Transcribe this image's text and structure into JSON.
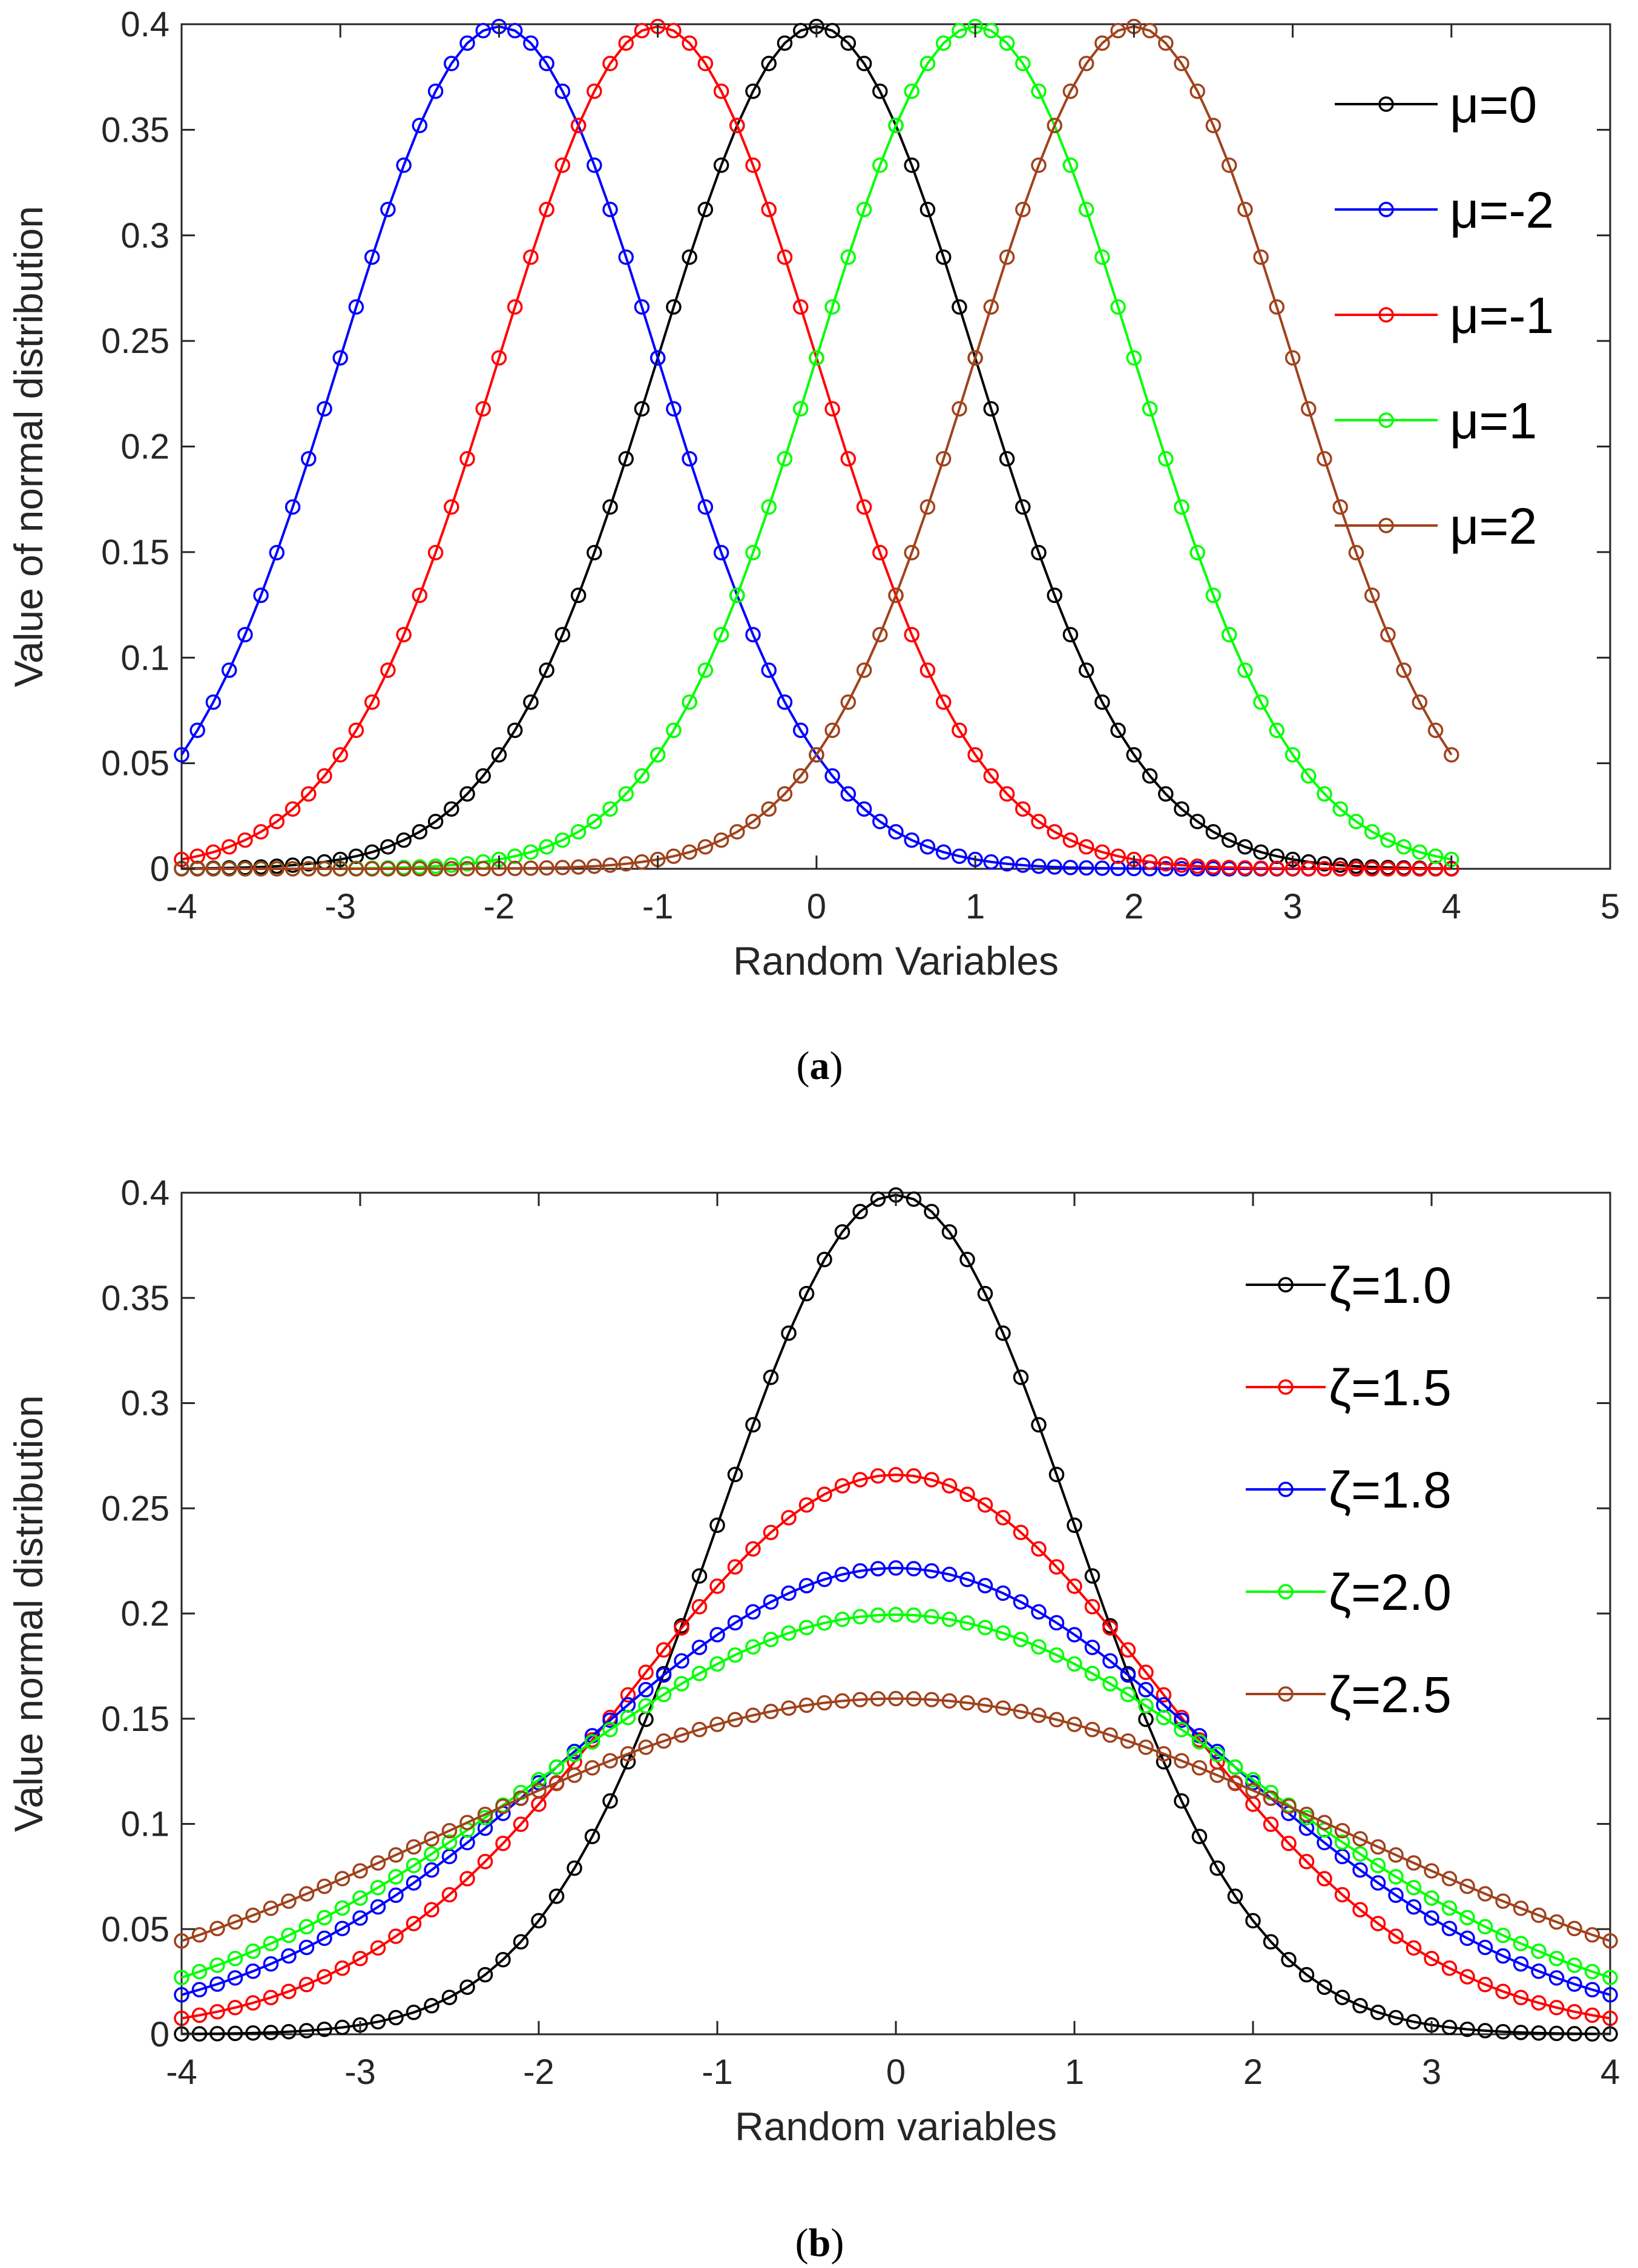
{
  "chart_data": [
    {
      "type": "line",
      "panel_label": "a",
      "xlabel": "Random Variables",
      "ylabel": "Value of normal distribution",
      "xlim": [
        -4,
        5
      ],
      "ylim": [
        0,
        0.4
      ],
      "xticks": [
        "-4",
        "-3",
        "-2",
        "-1",
        "0",
        "1",
        "2",
        "3",
        "4",
        "5"
      ],
      "yticks": [
        "0",
        "0.05",
        "0.1",
        "0.15",
        "0.2",
        "0.25",
        "0.3",
        "0.35",
        "0.4"
      ],
      "x_range": [
        -4,
        4
      ],
      "x_step": 0.1,
      "marker": "circle",
      "grid": false,
      "legend_position": "top-right",
      "series": [
        {
          "name": "μ=0",
          "mu": 0,
          "sigma": 1,
          "color": "#000000"
        },
        {
          "name": "μ=-2",
          "mu": -2,
          "sigma": 1,
          "color": "#0000ff"
        },
        {
          "name": "μ=-1",
          "mu": -1,
          "sigma": 1,
          "color": "#ff0000"
        },
        {
          "name": "μ=1",
          "mu": 1,
          "sigma": 1,
          "color": "#00ff00"
        },
        {
          "name": "μ=2",
          "mu": 2,
          "sigma": 1,
          "color": "#a0421c"
        }
      ]
    },
    {
      "type": "line",
      "panel_label": "b",
      "xlabel": "Random variables",
      "ylabel": "Value normal distribution",
      "xlim": [
        -4,
        4
      ],
      "ylim": [
        0,
        0.4
      ],
      "xticks": [
        "-4",
        "-3",
        "-2",
        "-1",
        "0",
        "1",
        "2",
        "3",
        "4"
      ],
      "yticks": [
        "0",
        "0.05",
        "0.1",
        "0.15",
        "0.2",
        "0.25",
        "0.3",
        "0.35",
        "0.4"
      ],
      "x_range": [
        -4,
        4
      ],
      "x_step": 0.1,
      "marker": "circle",
      "grid": false,
      "legend_position": "top-right",
      "series": [
        {
          "name": "ζ=1.0",
          "mu": 0,
          "sigma": 1.0,
          "color": "#000000"
        },
        {
          "name": "ζ=1.5",
          "mu": 0,
          "sigma": 1.5,
          "color": "#ff0000"
        },
        {
          "name": "ζ=1.8",
          "mu": 0,
          "sigma": 1.8,
          "color": "#0000ff"
        },
        {
          "name": "ζ=2.0",
          "mu": 0,
          "sigma": 2.0,
          "color": "#00ff00"
        },
        {
          "name": "ζ=2.5",
          "mu": 0,
          "sigma": 2.5,
          "color": "#a0421c"
        }
      ]
    }
  ]
}
